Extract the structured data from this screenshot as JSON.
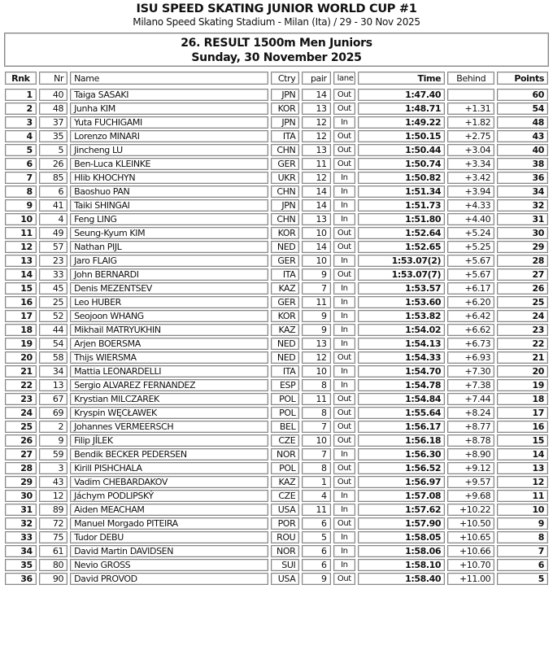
{
  "header": {
    "title": "ISU SPEED SKATING JUNIOR WORLD CUP #1",
    "subtitle": "Milano Speed Skating Stadium - Milan (Ita) / 29 - 30 Nov 2025"
  },
  "event": {
    "title": "26. RESULT 1500m Men Juniors",
    "date": "Sunday, 30 November 2025"
  },
  "columns": {
    "rnk": "Rnk",
    "nr": "Nr",
    "name": "Name",
    "ctry": "Ctry",
    "pair": "pair",
    "lane": "lane",
    "time": "Time",
    "behind": "Behind",
    "points": "Points"
  },
  "rows": [
    [
      "1",
      "40",
      "Taiga SASAKI",
      "JPN",
      "14",
      "Out",
      "1:47.40",
      "",
      "60"
    ],
    [
      "2",
      "48",
      "Junha KIM",
      "KOR",
      "13",
      "Out",
      "1:48.71",
      "+1.31",
      "54"
    ],
    [
      "3",
      "37",
      "Yuta FUCHIGAMI",
      "JPN",
      "12",
      "In",
      "1:49.22",
      "+1.82",
      "48"
    ],
    [
      "4",
      "35",
      "Lorenzo MINARI",
      "ITA",
      "12",
      "Out",
      "1:50.15",
      "+2.75",
      "43"
    ],
    [
      "5",
      "5",
      "Jincheng LU",
      "CHN",
      "13",
      "Out",
      "1:50.44",
      "+3.04",
      "40"
    ],
    [
      "6",
      "26",
      "Ben-Luca KLEINKE",
      "GER",
      "11",
      "Out",
      "1:50.74",
      "+3.34",
      "38"
    ],
    [
      "7",
      "85",
      "Hlib KHOCHYN",
      "UKR",
      "12",
      "In",
      "1:50.82",
      "+3.42",
      "36"
    ],
    [
      "8",
      "6",
      "Baoshuo PAN",
      "CHN",
      "14",
      "In",
      "1:51.34",
      "+3.94",
      "34"
    ],
    [
      "9",
      "41",
      "Taiki SHINGAI",
      "JPN",
      "14",
      "In",
      "1:51.73",
      "+4.33",
      "32"
    ],
    [
      "10",
      "4",
      "Feng LING",
      "CHN",
      "13",
      "In",
      "1:51.80",
      "+4.40",
      "31"
    ],
    [
      "11",
      "49",
      "Seung-Kyum KIM",
      "KOR",
      "10",
      "Out",
      "1:52.64",
      "+5.24",
      "30"
    ],
    [
      "12",
      "57",
      "Nathan PIJL",
      "NED",
      "14",
      "Out",
      "1:52.65",
      "+5.25",
      "29"
    ],
    [
      "13",
      "23",
      "Jaro FLAIG",
      "GER",
      "10",
      "In",
      "1:53.07(2)",
      "+5.67",
      "28"
    ],
    [
      "14",
      "33",
      "John BERNARDI",
      "ITA",
      "9",
      "Out",
      "1:53.07(7)",
      "+5.67",
      "27"
    ],
    [
      "15",
      "45",
      "Denis MEZENTSEV",
      "KAZ",
      "7",
      "In",
      "1:53.57",
      "+6.17",
      "26"
    ],
    [
      "16",
      "25",
      "Leo HUBER",
      "GER",
      "11",
      "In",
      "1:53.60",
      "+6.20",
      "25"
    ],
    [
      "17",
      "52",
      "Seojoon WHANG",
      "KOR",
      "9",
      "In",
      "1:53.82",
      "+6.42",
      "24"
    ],
    [
      "18",
      "44",
      "Mikhail MATRYUKHIN",
      "KAZ",
      "9",
      "In",
      "1:54.02",
      "+6.62",
      "23"
    ],
    [
      "19",
      "54",
      "Arjen BOERSMA",
      "NED",
      "13",
      "In",
      "1:54.13",
      "+6.73",
      "22"
    ],
    [
      "20",
      "58",
      "Thijs WIERSMA",
      "NED",
      "12",
      "Out",
      "1:54.33",
      "+6.93",
      "21"
    ],
    [
      "21",
      "34",
      "Mattia LEONARDELLI",
      "ITA",
      "10",
      "In",
      "1:54.70",
      "+7.30",
      "20"
    ],
    [
      "22",
      "13",
      "Sergio ALVAREZ FERNANDEZ",
      "ESP",
      "8",
      "In",
      "1:54.78",
      "+7.38",
      "19"
    ],
    [
      "23",
      "67",
      "Krystian MILCZAREK",
      "POL",
      "11",
      "Out",
      "1:54.84",
      "+7.44",
      "18"
    ],
    [
      "24",
      "69",
      "Kryspin WĘCŁAWEK",
      "POL",
      "8",
      "Out",
      "1:55.64",
      "+8.24",
      "17"
    ],
    [
      "25",
      "2",
      "Johannes VERMEERSCH",
      "BEL",
      "7",
      "Out",
      "1:56.17",
      "+8.77",
      "16"
    ],
    [
      "26",
      "9",
      "Filip JÍLEK",
      "CZE",
      "10",
      "Out",
      "1:56.18",
      "+8.78",
      "15"
    ],
    [
      "27",
      "59",
      "Bendik BECKER PEDERSEN",
      "NOR",
      "7",
      "In",
      "1:56.30",
      "+8.90",
      "14"
    ],
    [
      "28",
      "3",
      "Kirill PISHCHALA",
      "POL",
      "8",
      "Out",
      "1:56.52",
      "+9.12",
      "13"
    ],
    [
      "29",
      "43",
      "Vadim CHEBARDAKOV",
      "KAZ",
      "1",
      "Out",
      "1:56.97",
      "+9.57",
      "12"
    ],
    [
      "30",
      "12",
      "Jáchym PODLIPSKÝ",
      "CZE",
      "4",
      "In",
      "1:57.08",
      "+9.68",
      "11"
    ],
    [
      "31",
      "89",
      "Aiden MEACHAM",
      "USA",
      "11",
      "In",
      "1:57.62",
      "+10.22",
      "10"
    ],
    [
      "32",
      "72",
      "Manuel Morgado PITEIRA",
      "POR",
      "6",
      "Out",
      "1:57.90",
      "+10.50",
      "9"
    ],
    [
      "33",
      "75",
      "Tudor DEBU",
      "ROU",
      "5",
      "In",
      "1:58.05",
      "+10.65",
      "8"
    ],
    [
      "34",
      "61",
      "David Martin DAVIDSEN",
      "NOR",
      "6",
      "In",
      "1:58.06",
      "+10.66",
      "7"
    ],
    [
      "35",
      "80",
      "Nevio GROSS",
      "SUI",
      "6",
      "In",
      "1:58.10",
      "+10.70",
      "6"
    ],
    [
      "36",
      "90",
      "David PROVOD",
      "USA",
      "9",
      "Out",
      "1:58.40",
      "+11.00",
      "5"
    ]
  ]
}
